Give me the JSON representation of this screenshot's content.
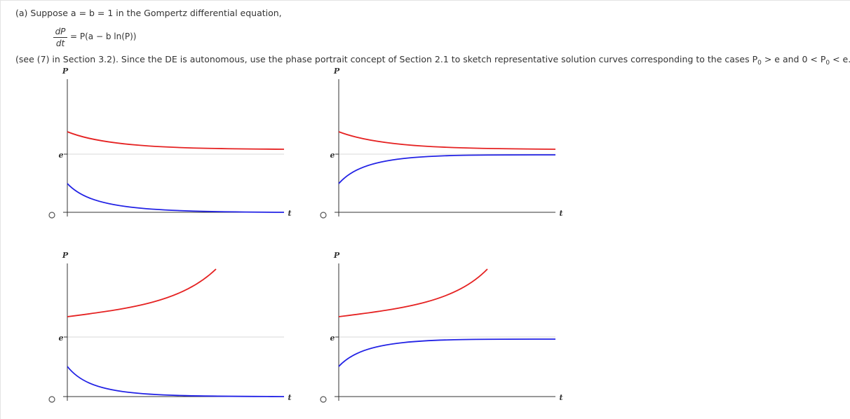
{
  "question": {
    "intro": "(a) Suppose a = b = 1 in the Gompertz differential equation,",
    "dp": "dP",
    "dt": "dt",
    "rhs": "= P(a − b ln(P))",
    "see_text_pre": "(see (7) in Section 3.2). Since the DE is autonomous, use the phase portrait concept of Section 2.1 to sketch representative solution curves corresponding to the cases P",
    "sub0": "0",
    "see_text_mid": " > e and 0 < P",
    "see_text_end": " < e."
  },
  "graph_labels": {
    "p_axis": "P",
    "t_axis": "t",
    "e_label": "e"
  },
  "colors": {
    "red_curve": "#e52222",
    "blue_curve": "#2222e5",
    "axis": "#333333",
    "equilibrium": "#d9d9d9"
  },
  "options": [
    {
      "id": "top-left",
      "upper": "decreasing to e",
      "lower": "decreasing to 0"
    },
    {
      "id": "top-right",
      "upper": "decreasing to e",
      "lower": "increasing to e"
    },
    {
      "id": "bottom-left",
      "upper": "increasing unbounded",
      "lower": "decreasing to 0"
    },
    {
      "id": "bottom-right",
      "upper": "increasing unbounded",
      "lower": "increasing to e"
    }
  ]
}
